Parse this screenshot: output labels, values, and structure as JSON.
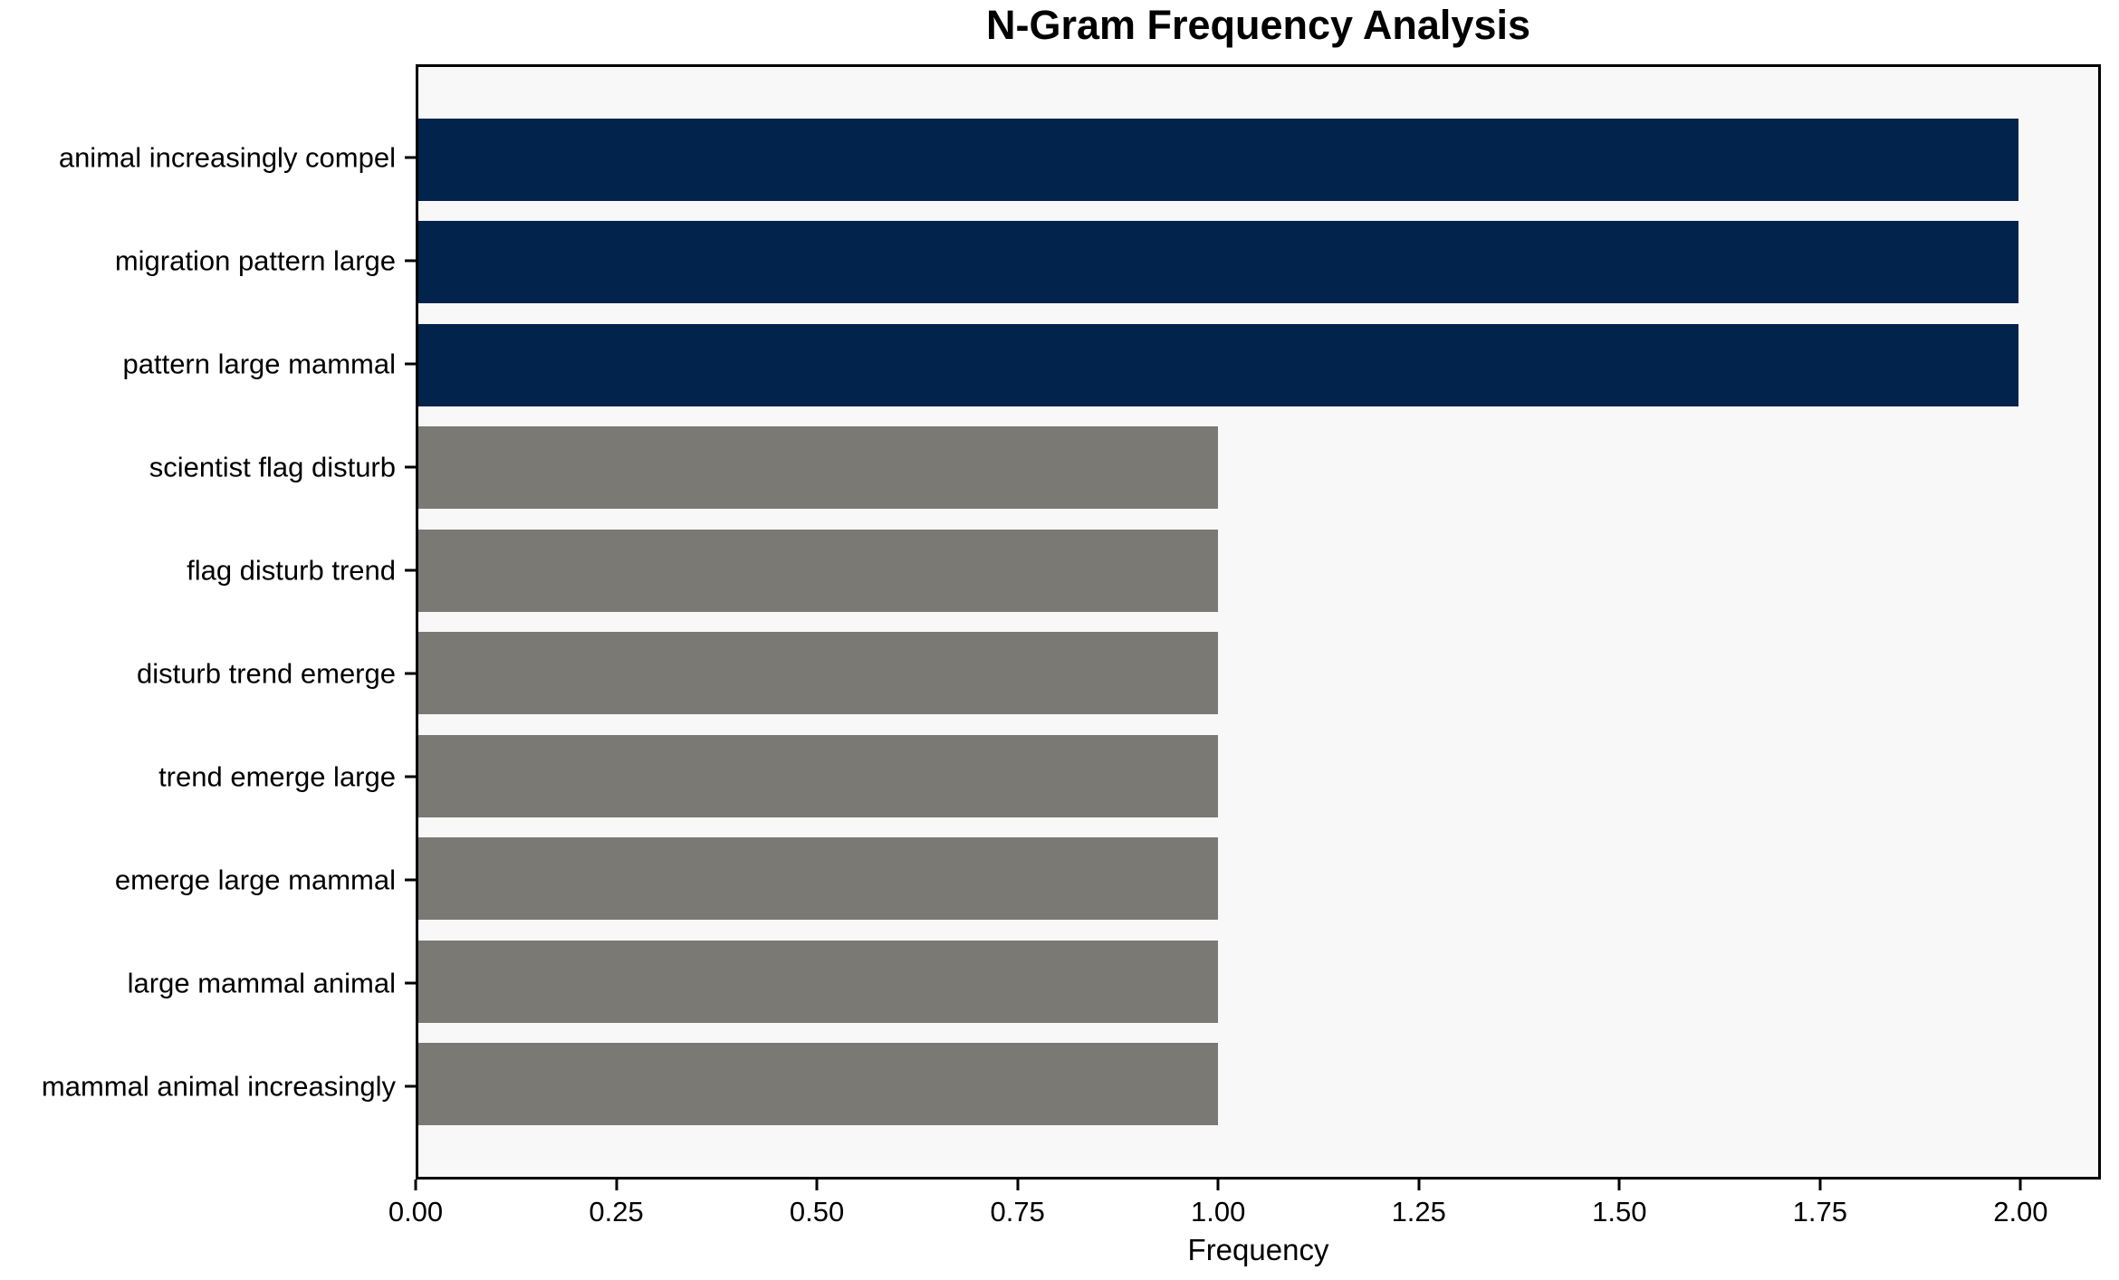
{
  "chart_data": {
    "type": "bar",
    "orientation": "horizontal",
    "title": "N-Gram Frequency Analysis",
    "xlabel": "Frequency",
    "ylabel": "",
    "categories": [
      "animal increasingly compel",
      "migration pattern large",
      "pattern large mammal",
      "scientist flag disturb",
      "flag disturb trend",
      "disturb trend emerge",
      "trend emerge large",
      "emerge large mammal",
      "large mammal animal",
      "mammal animal increasingly"
    ],
    "values": [
      2,
      2,
      2,
      1,
      1,
      1,
      1,
      1,
      1,
      1
    ],
    "bar_colors": [
      "#02234c",
      "#02234c",
      "#02234c",
      "#7b7974",
      "#7b7974",
      "#7b7974",
      "#7b7974",
      "#7b7974",
      "#7b7974",
      "#7b7974"
    ],
    "xlim": [
      0,
      2.1
    ],
    "ylim": [
      -0.9,
      9.9
    ],
    "bar_height": 0.8,
    "x_tick_values": [
      0,
      0.25,
      0.5,
      0.75,
      1.0,
      1.25,
      1.5,
      1.75,
      2.0
    ],
    "x_tick_labels": [
      "0.00",
      "0.25",
      "0.50",
      "0.75",
      "1.00",
      "1.25",
      "1.50",
      "1.75",
      "2.00"
    ],
    "grid": false,
    "legend": false,
    "colors": {
      "highlight_bar": "#02234c",
      "default_bar": "#7b7974",
      "plot_background": "#f8f8f8",
      "figure_background": "#ffffff",
      "axis": "#000000",
      "text": "#000000"
    }
  }
}
